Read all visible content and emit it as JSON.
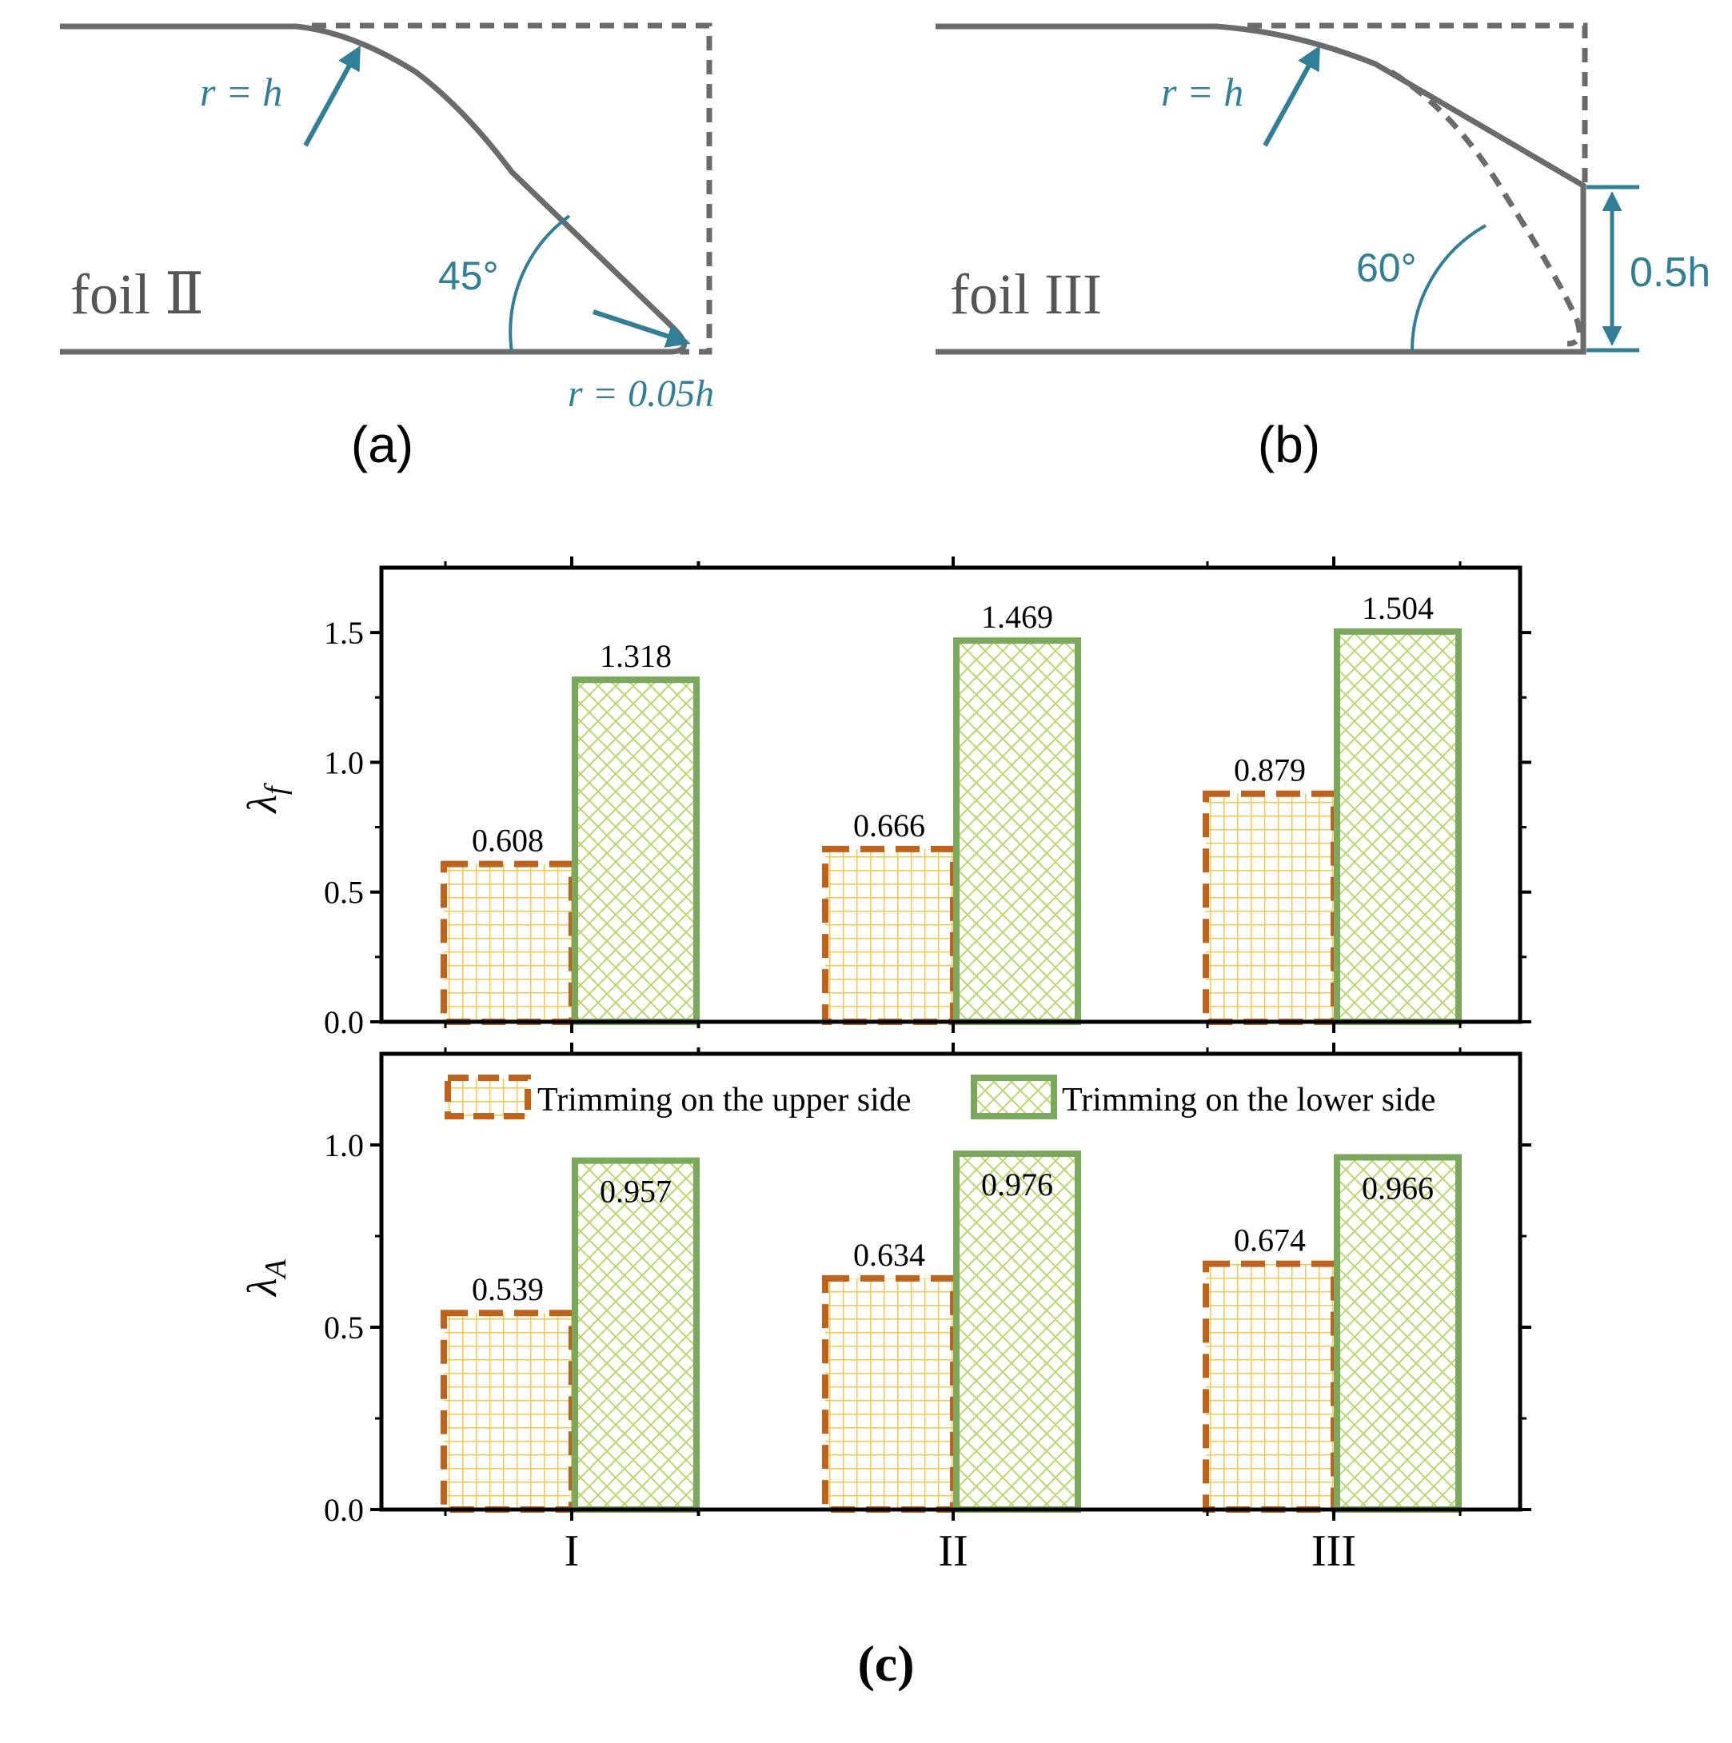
{
  "colors": {
    "annotation": "#2e7f97",
    "foil_outline": "#6b6b6b",
    "axis": "#000000",
    "upper_edge": "#c0621a",
    "upper_hatch": "#f6c84a",
    "lower_edge": "#7aa95c",
    "lower_hatch": "#b8d86a"
  },
  "panel_a": {
    "foil_label": "foil Ⅱ",
    "r_top": "r = h",
    "angle": "45°",
    "r_tip": "r = 0.05h",
    "caption": "(a)"
  },
  "panel_b": {
    "foil_label": "foil III",
    "r_top": "r = h",
    "angle": "60°",
    "height": "0.5h",
    "caption": "(b)"
  },
  "panel_c": {
    "caption": "(c)"
  },
  "chart_data": [
    {
      "type": "bar",
      "ylabel": "λf",
      "ylim": [
        0,
        1.75
      ],
      "yticks": [
        "0.0",
        "0.5",
        "1.0",
        "1.5"
      ],
      "categories": [
        "I",
        "II",
        "III"
      ],
      "series": [
        {
          "name": "Trimming on the upper side",
          "values": [
            0.608,
            0.666,
            0.879
          ],
          "labels": [
            "0.608",
            "0.666",
            "0.879"
          ]
        },
        {
          "name": "Trimming on the lower side",
          "values": [
            1.318,
            1.469,
            1.504
          ],
          "labels": [
            "1.318",
            "1.469",
            "1.504"
          ]
        }
      ]
    },
    {
      "type": "bar",
      "ylabel": "λA",
      "ylim": [
        0,
        1.25
      ],
      "yticks": [
        "0.0",
        "0.5",
        "1.0"
      ],
      "categories": [
        "I",
        "II",
        "III"
      ],
      "legend": [
        "Trimming on the upper side",
        "Trimming on the lower side"
      ],
      "legend_position": "top",
      "series": [
        {
          "name": "Trimming on the upper side",
          "values": [
            0.539,
            0.634,
            0.674
          ],
          "labels": [
            "0.539",
            "0.634",
            "0.674"
          ]
        },
        {
          "name": "Trimming on the lower side",
          "values": [
            0.957,
            0.976,
            0.966
          ],
          "labels": [
            "0.957",
            "0.976",
            "0.966"
          ]
        }
      ]
    }
  ]
}
